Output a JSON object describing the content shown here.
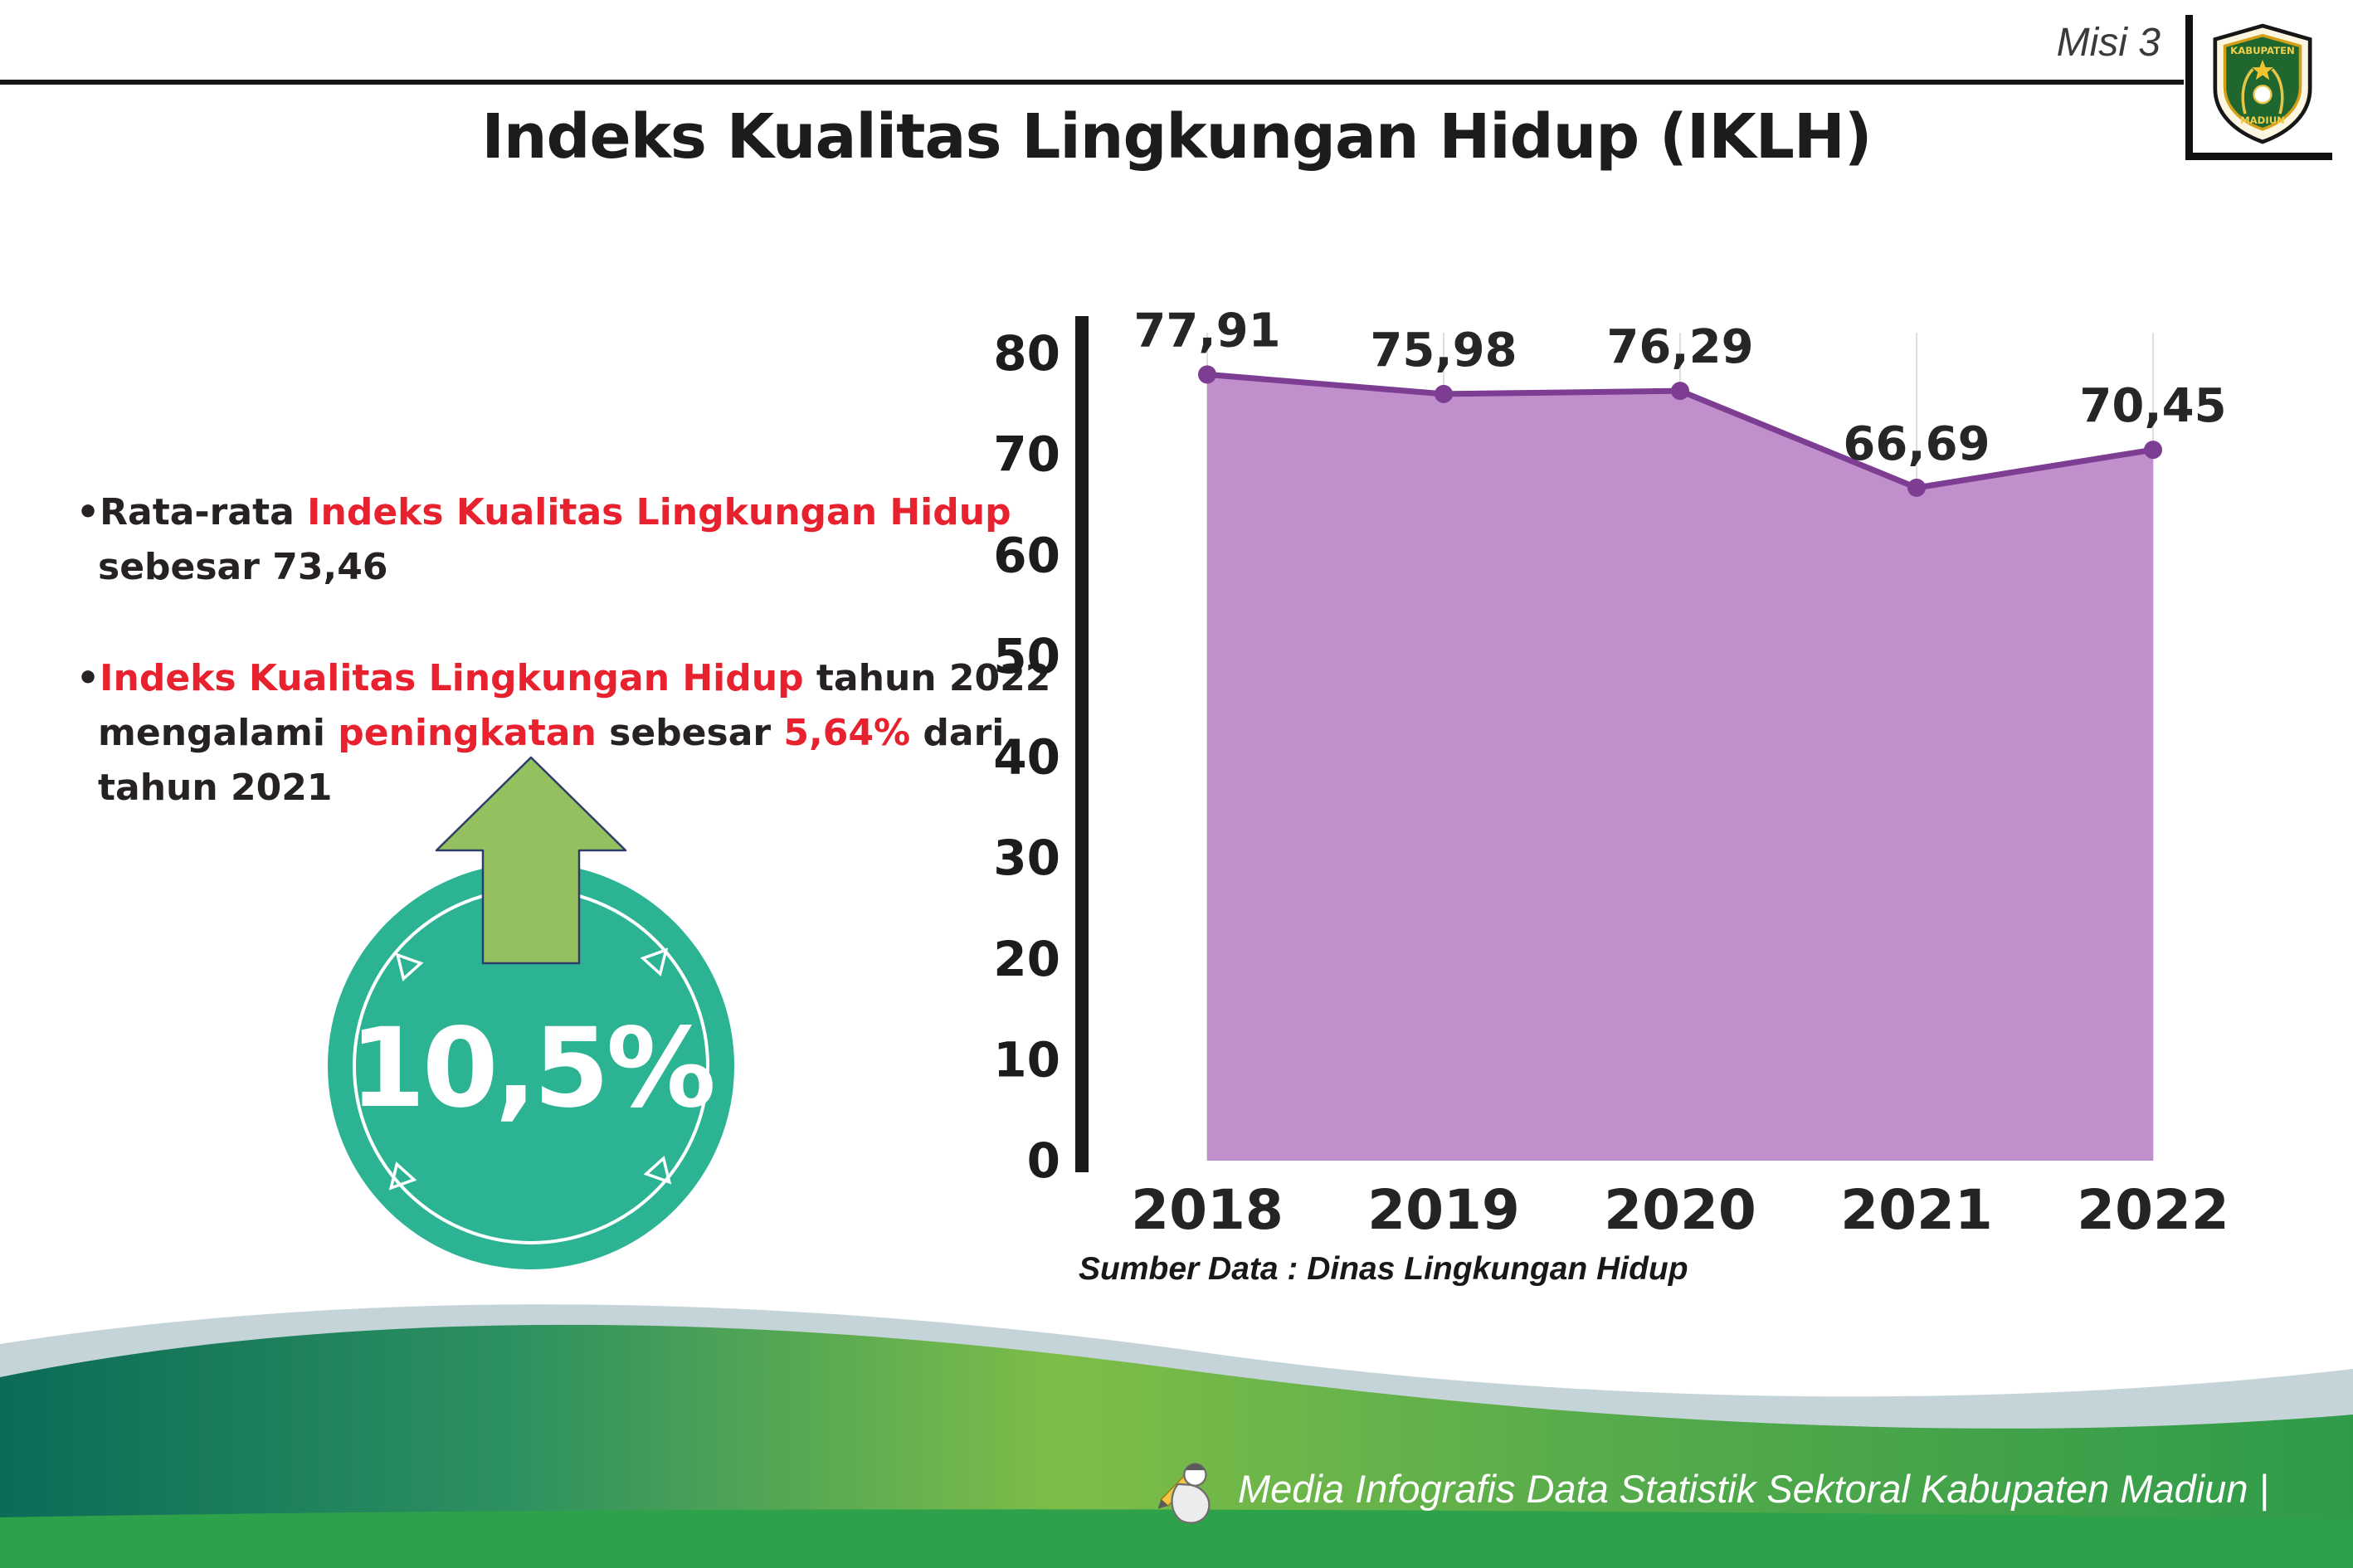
{
  "colors": {
    "title_text": "#1d1b1c",
    "body_text": "#262224",
    "highlight_red": "#e8212e",
    "badge_teal": "#2cb394",
    "arrow_green": "#95c05f",
    "chart_line_purple": "#7c3d92",
    "chart_fill_purple": "#c190cc",
    "footer_green_dark": "#0c6b58",
    "footer_green_light": "#7dbd48",
    "footer_band_green": "#2ea24a"
  },
  "header": {
    "misi_label": "Misi 3",
    "title": "Indeks Kualitas Lingkungan Hidup (IKLH)",
    "logo": {
      "top_text": "KABUPATEN",
      "bottom_text": "MADIUN"
    }
  },
  "bullets": {
    "marker": "•",
    "b1": {
      "p1": "Rata-rata ",
      "p2": "Indeks Kualitas Lingkungan Hidup",
      "p3": " sebesar 73,46"
    },
    "b2": {
      "p1": "Indeks Kualitas Lingkungan Hidup",
      "p2": " tahun 2022 mengalami ",
      "p3": "peningkatan",
      "p4": " sebesar ",
      "p5": "5,64%",
      "p6": " dari tahun 2021"
    }
  },
  "badge": {
    "value": "10,5%"
  },
  "chart_data": {
    "type": "area",
    "title": "Indeks Kualitas Lingkungan Hidup (IKLH)",
    "categories": [
      "2018",
      "2019",
      "2020",
      "2021",
      "2022"
    ],
    "values": [
      77.91,
      75.98,
      76.29,
      66.69,
      70.45
    ],
    "point_labels": [
      "77,91",
      "75,98",
      "76,29",
      "66,69",
      "70,45"
    ],
    "ylim": [
      0,
      80
    ],
    "ytick_step": 10,
    "yticks": [
      0,
      10,
      20,
      30,
      40,
      50,
      60,
      70,
      80
    ],
    "grid": "vertical",
    "legend": "none",
    "line_color": "#7c3d92",
    "fill_color": "#c190cc",
    "source": "Sumber Data : Dinas Lingkungan Hidup"
  },
  "footer": {
    "credit": "Media Infografis Data Statistik Sektoral Kabupaten Madiun |"
  }
}
